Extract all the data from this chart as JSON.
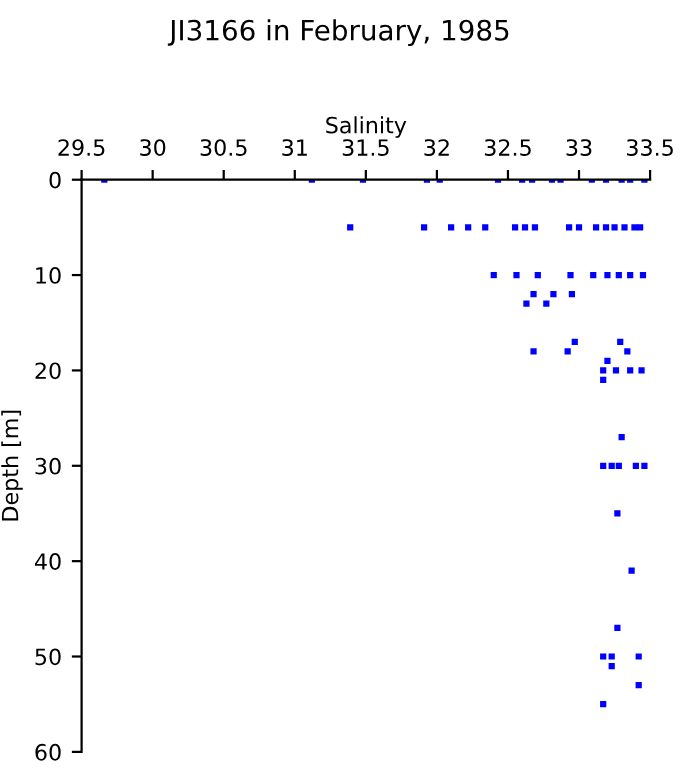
{
  "chart_data": {
    "type": "scatter",
    "title": "JI3166 in February, 1985",
    "xlabel": "Salinity",
    "ylabel": "Depth [m]",
    "xlim": [
      29.5,
      33.5
    ],
    "ylim": [
      60,
      0
    ],
    "xticks": [
      29.5,
      30,
      30.5,
      31,
      31.5,
      32,
      32.5,
      33,
      33.5
    ],
    "yticks": [
      0,
      10,
      20,
      30,
      40,
      50,
      60
    ],
    "grid": false,
    "marker": "square",
    "series": [
      {
        "color": "#0000ff",
        "x": [
          29.66,
          31.12,
          31.48,
          31.93,
          32.02,
          32.43,
          32.6,
          32.67,
          32.81,
          32.87,
          33.09,
          33.19,
          33.3,
          33.36,
          33.46,
          31.39,
          31.91,
          32.1,
          32.22,
          32.34,
          32.55,
          32.62,
          32.69,
          32.93,
          33.0,
          33.12,
          33.19,
          33.25,
          33.32,
          33.39,
          33.43,
          32.4,
          32.56,
          32.71,
          32.94,
          33.1,
          33.2,
          33.28,
          33.36,
          33.45,
          32.68,
          32.82,
          32.95,
          32.63,
          32.77,
          32.97,
          33.29,
          32.68,
          32.92,
          33.34,
          33.2,
          33.17,
          33.26,
          33.36,
          33.44,
          33.17,
          33.3,
          33.17,
          33.23,
          33.28,
          33.4,
          33.46,
          33.27,
          33.37,
          33.27,
          33.17,
          33.23,
          33.42,
          33.23,
          33.42,
          33.17
        ],
        "values": [
          0,
          0,
          0,
          0,
          0,
          0,
          0,
          0,
          0,
          0,
          0,
          0,
          0,
          0,
          0,
          5,
          5,
          5,
          5,
          5,
          5,
          5,
          5,
          5,
          5,
          5,
          5,
          5,
          5,
          5,
          5,
          10,
          10,
          10,
          10,
          10,
          10,
          10,
          10,
          10,
          12,
          12,
          12,
          13,
          13,
          17,
          17,
          18,
          18,
          18,
          19,
          20,
          20,
          20,
          20,
          21,
          27,
          30,
          30,
          30,
          30,
          30,
          35,
          41,
          47,
          50,
          50,
          50,
          51,
          53,
          55
        ]
      }
    ]
  }
}
